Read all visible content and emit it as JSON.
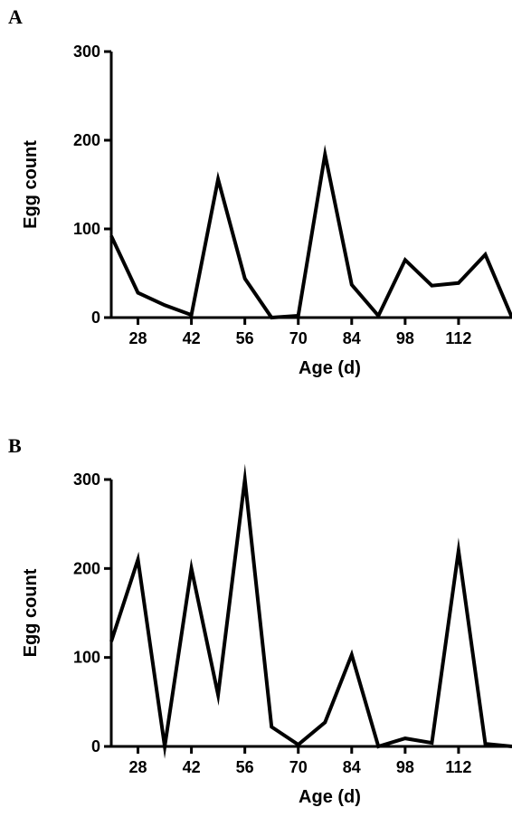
{
  "chart_data": [
    {
      "panel": "A",
      "type": "line",
      "xlabel": "Age (d)",
      "ylabel": "Egg count",
      "xlim": [
        21,
        126
      ],
      "ylim": [
        0,
        300
      ],
      "xticks": [
        28,
        42,
        56,
        70,
        84,
        98,
        112
      ],
      "yticks": [
        0,
        100,
        200,
        300
      ],
      "grid": false,
      "legend": "none",
      "color": "#000000",
      "series": [
        {
          "x": [
            21,
            28,
            35,
            42,
            49,
            56,
            63,
            70,
            77,
            84,
            91,
            98,
            105,
            112,
            119,
            126
          ],
          "y": [
            92,
            28,
            14,
            3,
            156,
            44,
            0,
            2,
            184,
            37,
            2,
            65,
            36,
            39,
            71,
            0
          ]
        }
      ]
    },
    {
      "panel": "B",
      "type": "line",
      "xlabel": "Age (d)",
      "ylabel": "Egg count",
      "xlim": [
        21,
        126
      ],
      "ylim": [
        0,
        300
      ],
      "xticks": [
        28,
        42,
        56,
        70,
        84,
        98,
        112
      ],
      "yticks": [
        0,
        100,
        200,
        300
      ],
      "grid": false,
      "legend": "none",
      "color": "#000000",
      "series": [
        {
          "x": [
            21,
            28,
            35,
            42,
            49,
            56,
            63,
            70,
            77,
            84,
            91,
            98,
            105,
            112,
            119,
            126
          ],
          "y": [
            118,
            210,
            0,
            200,
            58,
            300,
            22,
            2,
            27,
            103,
            0,
            9,
            4,
            220,
            3,
            0
          ]
        }
      ]
    }
  ]
}
